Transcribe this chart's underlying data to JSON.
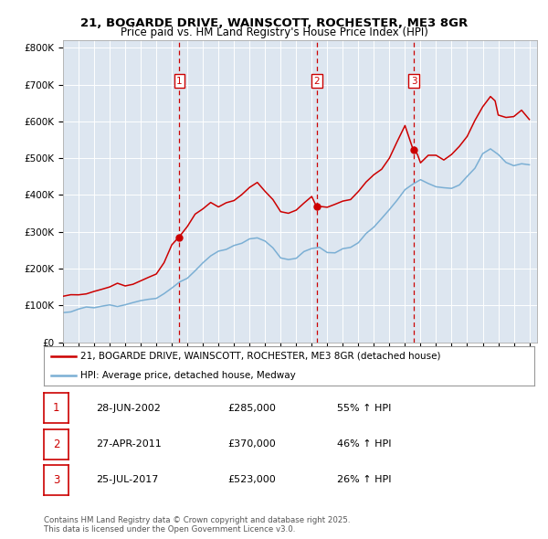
{
  "title1": "21, BOGARDE DRIVE, WAINSCOTT, ROCHESTER, ME3 8GR",
  "title2": "Price paid vs. HM Land Registry's House Price Index (HPI)",
  "red_label": "21, BOGARDE DRIVE, WAINSCOTT, ROCHESTER, ME3 8GR (detached house)",
  "blue_label": "HPI: Average price, detached house, Medway",
  "sale_1_date": "28-JUN-2002",
  "sale_1_price": 285000,
  "sale_1_pct": "55% ↑ HPI",
  "sale_2_date": "27-APR-2011",
  "sale_2_price": 370000,
  "sale_2_pct": "46% ↑ HPI",
  "sale_3_date": "25-JUL-2017",
  "sale_3_price": 523000,
  "sale_3_pct": "26% ↑ HPI",
  "footer": "Contains HM Land Registry data © Crown copyright and database right 2025.\nThis data is licensed under the Open Government Licence v3.0.",
  "bg_color": "#dde6f0",
  "red_color": "#cc0000",
  "blue_color": "#7bafd4",
  "vline_color": "#cc0000",
  "red_points": [
    [
      1995.0,
      125000
    ],
    [
      1995.5,
      128000
    ],
    [
      1996.0,
      130000
    ],
    [
      1996.5,
      135000
    ],
    [
      1997.0,
      140000
    ],
    [
      1997.5,
      148000
    ],
    [
      1998.0,
      150000
    ],
    [
      1998.5,
      155000
    ],
    [
      1999.0,
      155000
    ],
    [
      1999.5,
      160000
    ],
    [
      2000.0,
      165000
    ],
    [
      2000.5,
      175000
    ],
    [
      2001.0,
      185000
    ],
    [
      2001.5,
      220000
    ],
    [
      2002.0,
      265000
    ],
    [
      2002.5,
      285000
    ],
    [
      2003.0,
      320000
    ],
    [
      2003.5,
      350000
    ],
    [
      2004.0,
      370000
    ],
    [
      2004.5,
      385000
    ],
    [
      2005.0,
      375000
    ],
    [
      2005.5,
      380000
    ],
    [
      2006.0,
      390000
    ],
    [
      2006.5,
      400000
    ],
    [
      2007.0,
      420000
    ],
    [
      2007.5,
      435000
    ],
    [
      2008.0,
      420000
    ],
    [
      2008.5,
      390000
    ],
    [
      2009.0,
      355000
    ],
    [
      2009.5,
      350000
    ],
    [
      2010.0,
      365000
    ],
    [
      2010.5,
      380000
    ],
    [
      2011.0,
      400000
    ],
    [
      2011.33,
      370000
    ],
    [
      2011.5,
      365000
    ],
    [
      2012.0,
      370000
    ],
    [
      2012.5,
      375000
    ],
    [
      2013.0,
      380000
    ],
    [
      2013.5,
      390000
    ],
    [
      2014.0,
      410000
    ],
    [
      2014.5,
      435000
    ],
    [
      2015.0,
      455000
    ],
    [
      2015.5,
      475000
    ],
    [
      2016.0,
      500000
    ],
    [
      2016.5,
      540000
    ],
    [
      2017.0,
      595000
    ],
    [
      2017.5,
      523000
    ],
    [
      2017.8,
      510000
    ],
    [
      2018.0,
      490000
    ],
    [
      2018.5,
      500000
    ],
    [
      2019.0,
      505000
    ],
    [
      2019.5,
      500000
    ],
    [
      2020.0,
      510000
    ],
    [
      2020.5,
      530000
    ],
    [
      2021.0,
      560000
    ],
    [
      2021.5,
      600000
    ],
    [
      2022.0,
      640000
    ],
    [
      2022.5,
      665000
    ],
    [
      2022.8,
      650000
    ],
    [
      2023.0,
      620000
    ],
    [
      2023.5,
      610000
    ],
    [
      2024.0,
      615000
    ],
    [
      2024.5,
      630000
    ],
    [
      2025.0,
      610000
    ]
  ],
  "blue_points": [
    [
      1995.0,
      82000
    ],
    [
      1995.5,
      83000
    ],
    [
      1996.0,
      88000
    ],
    [
      1996.5,
      93000
    ],
    [
      1997.0,
      97000
    ],
    [
      1997.5,
      100000
    ],
    [
      1998.0,
      100000
    ],
    [
      1998.5,
      102000
    ],
    [
      1999.0,
      103000
    ],
    [
      1999.5,
      108000
    ],
    [
      2000.0,
      110000
    ],
    [
      2000.5,
      115000
    ],
    [
      2001.0,
      120000
    ],
    [
      2001.5,
      133000
    ],
    [
      2002.0,
      148000
    ],
    [
      2002.5,
      160000
    ],
    [
      2003.0,
      175000
    ],
    [
      2003.5,
      195000
    ],
    [
      2004.0,
      215000
    ],
    [
      2004.5,
      235000
    ],
    [
      2005.0,
      248000
    ],
    [
      2005.5,
      255000
    ],
    [
      2006.0,
      263000
    ],
    [
      2006.5,
      270000
    ],
    [
      2007.0,
      278000
    ],
    [
      2007.5,
      282000
    ],
    [
      2008.0,
      275000
    ],
    [
      2008.5,
      255000
    ],
    [
      2009.0,
      230000
    ],
    [
      2009.5,
      222000
    ],
    [
      2010.0,
      228000
    ],
    [
      2010.5,
      245000
    ],
    [
      2011.0,
      258000
    ],
    [
      2011.5,
      257000
    ],
    [
      2012.0,
      248000
    ],
    [
      2012.5,
      248000
    ],
    [
      2013.0,
      255000
    ],
    [
      2013.5,
      260000
    ],
    [
      2014.0,
      270000
    ],
    [
      2014.5,
      290000
    ],
    [
      2015.0,
      315000
    ],
    [
      2015.5,
      338000
    ],
    [
      2016.0,
      360000
    ],
    [
      2016.5,
      385000
    ],
    [
      2017.0,
      415000
    ],
    [
      2017.5,
      430000
    ],
    [
      2018.0,
      440000
    ],
    [
      2018.5,
      430000
    ],
    [
      2019.0,
      425000
    ],
    [
      2019.5,
      420000
    ],
    [
      2020.0,
      418000
    ],
    [
      2020.5,
      430000
    ],
    [
      2021.0,
      450000
    ],
    [
      2021.5,
      475000
    ],
    [
      2022.0,
      510000
    ],
    [
      2022.5,
      525000
    ],
    [
      2023.0,
      510000
    ],
    [
      2023.5,
      490000
    ],
    [
      2024.0,
      480000
    ],
    [
      2024.5,
      490000
    ],
    [
      2025.0,
      485000
    ]
  ]
}
